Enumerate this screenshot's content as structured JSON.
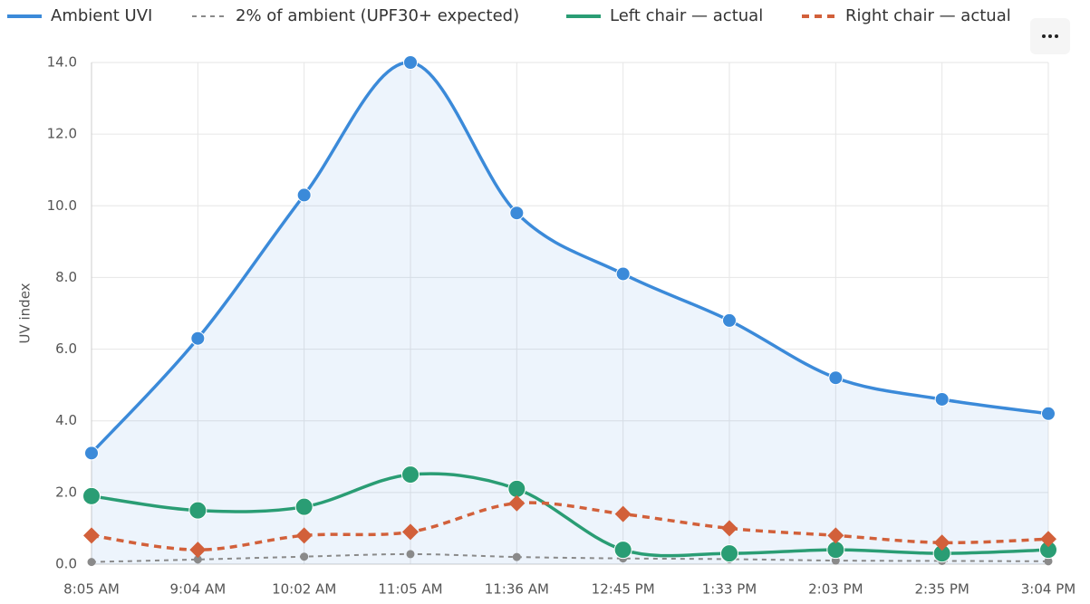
{
  "chart_data": {
    "type": "line",
    "y_axis_label": "UV index",
    "categories": [
      "8:05 AM",
      "9:04 AM",
      "10:02 AM",
      "11:05 AM",
      "11:36 AM",
      "12:45 PM",
      "1:33 PM",
      "2:03 PM",
      "2:35 PM",
      "3:04 PM"
    ],
    "series": [
      {
        "name": "Ambient UVI",
        "color": "#3b8ad9",
        "marker": "circle",
        "dashed": false,
        "area": true,
        "values": [
          3.1,
          6.3,
          10.3,
          14.0,
          9.8,
          8.1,
          6.8,
          5.2,
          4.6,
          4.2
        ]
      },
      {
        "name": "2% of ambient (UPF30+ expected)",
        "color": "#8a8a8a",
        "marker": "circle",
        "dashed": true,
        "area": false,
        "values": [
          0.06,
          0.13,
          0.21,
          0.28,
          0.2,
          0.16,
          0.14,
          0.1,
          0.09,
          0.08
        ]
      },
      {
        "name": "Left chair — actual",
        "color": "#2a9d74",
        "marker": "circle",
        "dashed": false,
        "area": false,
        "values": [
          1.9,
          1.5,
          1.6,
          2.5,
          2.1,
          0.4,
          0.3,
          0.4,
          0.3,
          0.4
        ]
      },
      {
        "name": "Right chair — actual",
        "color": "#d2603a",
        "marker": "diamond",
        "dashed": true,
        "area": false,
        "values": [
          0.8,
          0.4,
          0.8,
          0.9,
          1.7,
          1.4,
          1.0,
          0.8,
          0.6,
          0.7
        ]
      }
    ],
    "ylim": [
      0,
      14
    ],
    "yticks": [
      {
        "value": 0,
        "label": "0.0"
      },
      {
        "value": 2,
        "label": "2.0"
      },
      {
        "value": 4,
        "label": "4.0"
      },
      {
        "value": 6,
        "label": "6.0"
      },
      {
        "value": 8,
        "label": "8.0"
      },
      {
        "value": 10,
        "label": "10.0"
      },
      {
        "value": 12,
        "label": "12.0"
      },
      {
        "value": 14,
        "label": "14.0"
      }
    ],
    "grid": true,
    "legend": "top"
  }
}
